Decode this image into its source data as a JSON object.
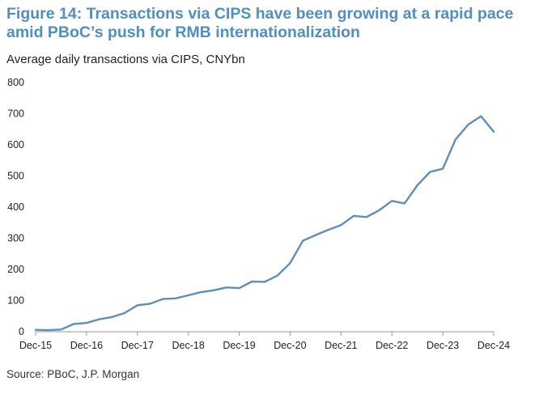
{
  "title": "Figure 14: Transactions via CIPS have been growing at a rapid pace amid PBoC’s push for RMB internationalization",
  "source": "Source: PBoC, J.P. Morgan",
  "chart_data": {
    "type": "line",
    "title": "Figure 14: Transactions via CIPS have been growing at a rapid pace amid PBoC’s push for RMB internationalization",
    "subtitle": "Average daily transactions via CIPS, CNYbn",
    "xlabel": "",
    "ylabel": "CNYbn",
    "ylim": [
      0,
      800
    ],
    "yticks": [
      0,
      100,
      200,
      300,
      400,
      500,
      600,
      700,
      800
    ],
    "xticks": [
      {
        "label": "Dec-15",
        "x": 0
      },
      {
        "label": "Dec-16",
        "x": 4
      },
      {
        "label": "Dec-17",
        "x": 8
      },
      {
        "label": "Dec-18",
        "x": 12
      },
      {
        "label": "Dec-19",
        "x": 16
      },
      {
        "label": "Dec-20",
        "x": 20
      },
      {
        "label": "Dec-21",
        "x": 24
      },
      {
        "label": "Dec-22",
        "x": 28
      },
      {
        "label": "Dec-23",
        "x": 32
      },
      {
        "label": "Dec-24",
        "x": 36
      }
    ],
    "xlim": [
      0,
      36
    ],
    "line_color": "#5b8fc4",
    "series": [
      {
        "name": "Average daily transactions via CIPS",
        "x": [
          0,
          1,
          2,
          3,
          4,
          5,
          6,
          7,
          8,
          9,
          10,
          11,
          12,
          13,
          14,
          15,
          16,
          17,
          18,
          19,
          20,
          21,
          22,
          23,
          24,
          25,
          26,
          27,
          28,
          29,
          30,
          31,
          32,
          33,
          34,
          35,
          36
        ],
        "values": [
          6,
          5,
          7,
          25,
          28,
          40,
          47,
          60,
          85,
          90,
          105,
          107,
          117,
          127,
          133,
          142,
          140,
          161,
          160,
          180,
          220,
          292,
          310,
          327,
          342,
          372,
          368,
          390,
          420,
          412,
          470,
          513,
          523,
          617,
          665,
          692,
          642
        ]
      }
    ]
  }
}
